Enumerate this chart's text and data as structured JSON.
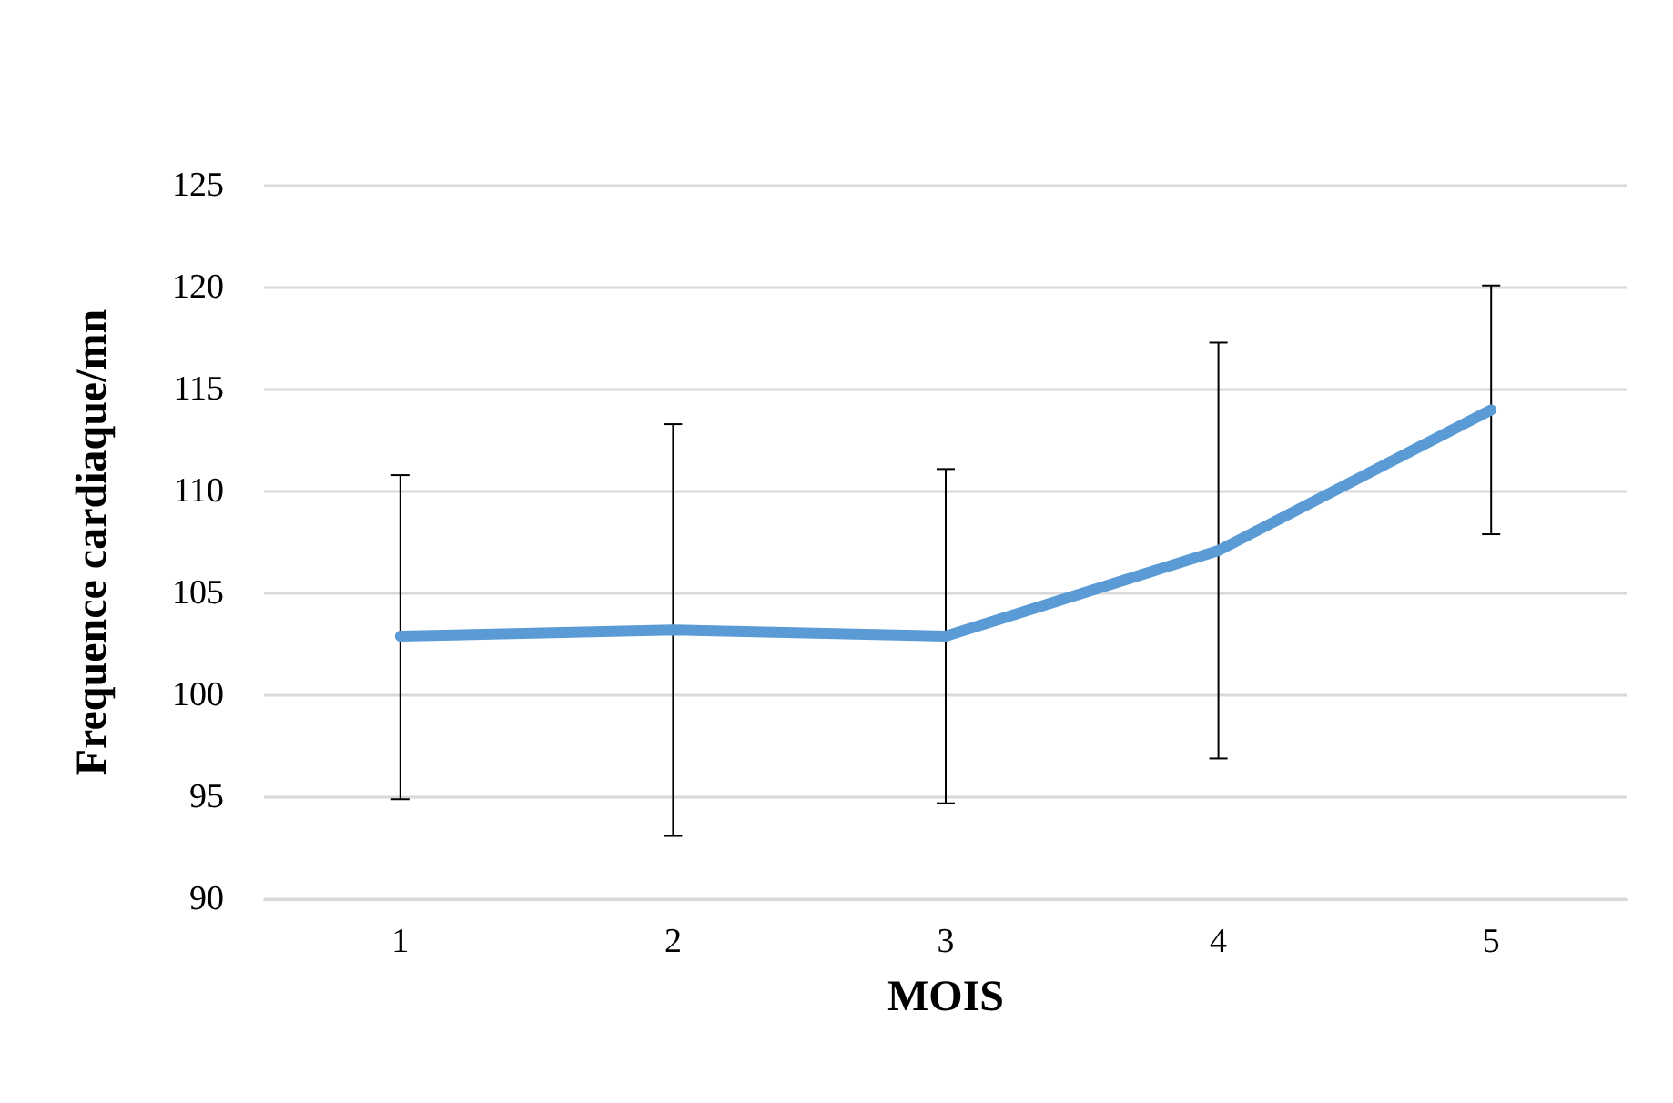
{
  "chart_data": {
    "type": "line",
    "xlabel": "MOIS",
    "ylabel": "Frequence cardiaque/mn",
    "categories": [
      "1",
      "2",
      "3",
      "4",
      "5"
    ],
    "series": [
      {
        "color": "#5b9bd5",
        "values": [
          102.9,
          103.2,
          102.9,
          107.1,
          114.0
        ],
        "errors": [
          [
            94.9,
            110.8
          ],
          [
            93.1,
            113.3
          ],
          [
            94.7,
            111.1
          ],
          [
            96.9,
            117.3
          ],
          [
            107.9,
            120.1
          ]
        ]
      }
    ],
    "ylim": [
      90,
      125
    ],
    "yticks": [
      90,
      95,
      100,
      105,
      110,
      115,
      120,
      125
    ],
    "grid": "y",
    "marker": "none",
    "line_style": "solid"
  }
}
